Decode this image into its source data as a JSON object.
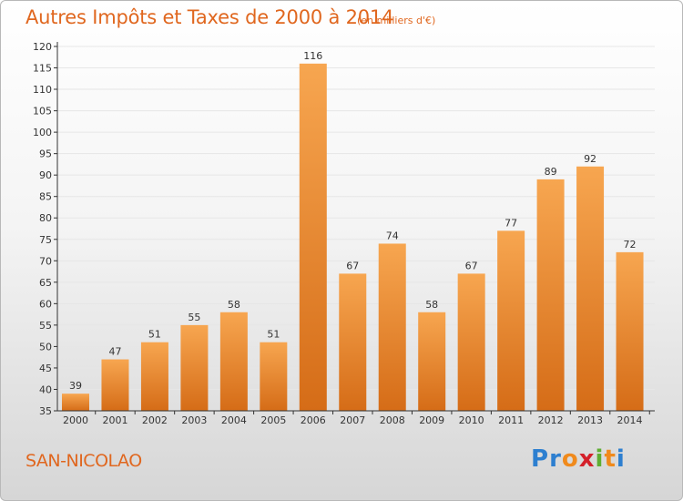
{
  "header": {
    "title": "Autres Impôts et Taxes de 2000 à 2014",
    "subtitle": "(en milliers d'€)"
  },
  "footer": {
    "commune": "SAN-NICOLAO",
    "logo_text": "Proxiti",
    "logo_letters": [
      {
        "char": "P",
        "color": "#2d7fd0"
      },
      {
        "char": "r",
        "color": "#2d7fd0"
      },
      {
        "char": "o",
        "color": "#f08a1c"
      },
      {
        "char": "x",
        "color": "#d4202a"
      },
      {
        "char": "i",
        "color": "#5fae32"
      },
      {
        "char": "t",
        "color": "#f08a1c"
      },
      {
        "char": "i",
        "color": "#2d7fd0"
      }
    ]
  },
  "colors": {
    "bar_light": "#f7a650",
    "bar_dark": "#d56c17",
    "text_orange": "#e0671f",
    "axis": "#333333",
    "grid": "#e6e6e6"
  },
  "chart_data": {
    "type": "bar",
    "categories": [
      "2000",
      "2001",
      "2002",
      "2003",
      "2004",
      "2005",
      "2006",
      "2007",
      "2008",
      "2009",
      "2010",
      "2011",
      "2012",
      "2013",
      "2014"
    ],
    "values": [
      39,
      47,
      51,
      55,
      58,
      51,
      116,
      67,
      74,
      58,
      67,
      77,
      89,
      92,
      72
    ],
    "ylim": [
      35,
      120
    ],
    "ytick_step": 5,
    "yticks": [
      35,
      40,
      45,
      50,
      55,
      60,
      65,
      70,
      75,
      80,
      85,
      90,
      95,
      100,
      105,
      110,
      115,
      120
    ],
    "grid": true,
    "data_labels": true
  }
}
